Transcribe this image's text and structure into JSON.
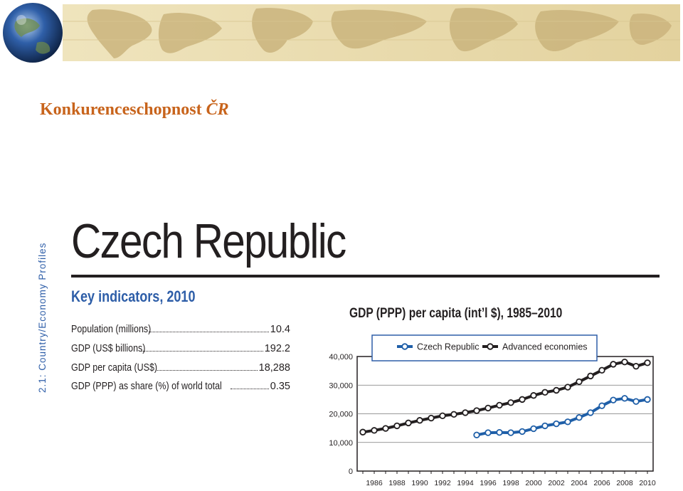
{
  "slide": {
    "title_plain": "Konkurenceschopnost ",
    "title_italic": "ČR",
    "side_label": "2.1: Country/Economy Profiles"
  },
  "profile": {
    "country": "Czech Republic",
    "key_title": "Key indicators, 2010",
    "indicators": [
      {
        "label": "Population (millions)",
        "value": "10.4"
      },
      {
        "label": "GDP (US$ billions)",
        "value": "192.2"
      },
      {
        "label": "GDP per capita (US$)",
        "value": "18,288"
      },
      {
        "label": "GDP (PPP) as share (%) of world total",
        "value": "0.35"
      }
    ]
  },
  "colors": {
    "title_orange": "#c8641c",
    "accent_blue": "#2e5ea8",
    "czech_series": "#1f5fa8",
    "advanced_series": "#231f20",
    "banner_sepia": "#e8d9a8"
  },
  "chart_data": {
    "type": "line",
    "title": "GDP (PPP) per capita (int’l $), 1985–2010",
    "xlabel": "",
    "ylabel": "",
    "ylim": [
      0,
      40000
    ],
    "yticks": [
      "40,000",
      "30,000",
      "20,000",
      "10,000",
      "0"
    ],
    "xtick_labels": [
      "1986",
      "1988",
      "1990",
      "1992",
      "1994",
      "1996",
      "1998",
      "2000",
      "2002",
      "2004",
      "2006",
      "2008",
      "2010"
    ],
    "grid": true,
    "legend_position": "top",
    "x": [
      1985,
      1986,
      1987,
      1988,
      1989,
      1990,
      1991,
      1992,
      1993,
      1994,
      1995,
      1996,
      1997,
      1998,
      1999,
      2000,
      2001,
      2002,
      2003,
      2004,
      2005,
      2006,
      2007,
      2008,
      2009,
      2010
    ],
    "series": [
      {
        "name": "Czech Republic",
        "color": "#1f5fa8",
        "values": [
          null,
          null,
          null,
          null,
          null,
          null,
          null,
          null,
          null,
          null,
          12600,
          13400,
          13500,
          13400,
          13800,
          14800,
          15800,
          16500,
          17200,
          18700,
          20400,
          22800,
          24800,
          25400,
          24300,
          25000
        ]
      },
      {
        "name": "Advanced economies",
        "color": "#231f20",
        "values": [
          13600,
          14200,
          14900,
          15800,
          16800,
          17700,
          18500,
          19300,
          19800,
          20400,
          21100,
          22000,
          23000,
          23900,
          25000,
          26400,
          27500,
          28200,
          29300,
          31200,
          33200,
          35200,
          37300,
          38100,
          36600,
          37800
        ]
      }
    ]
  }
}
